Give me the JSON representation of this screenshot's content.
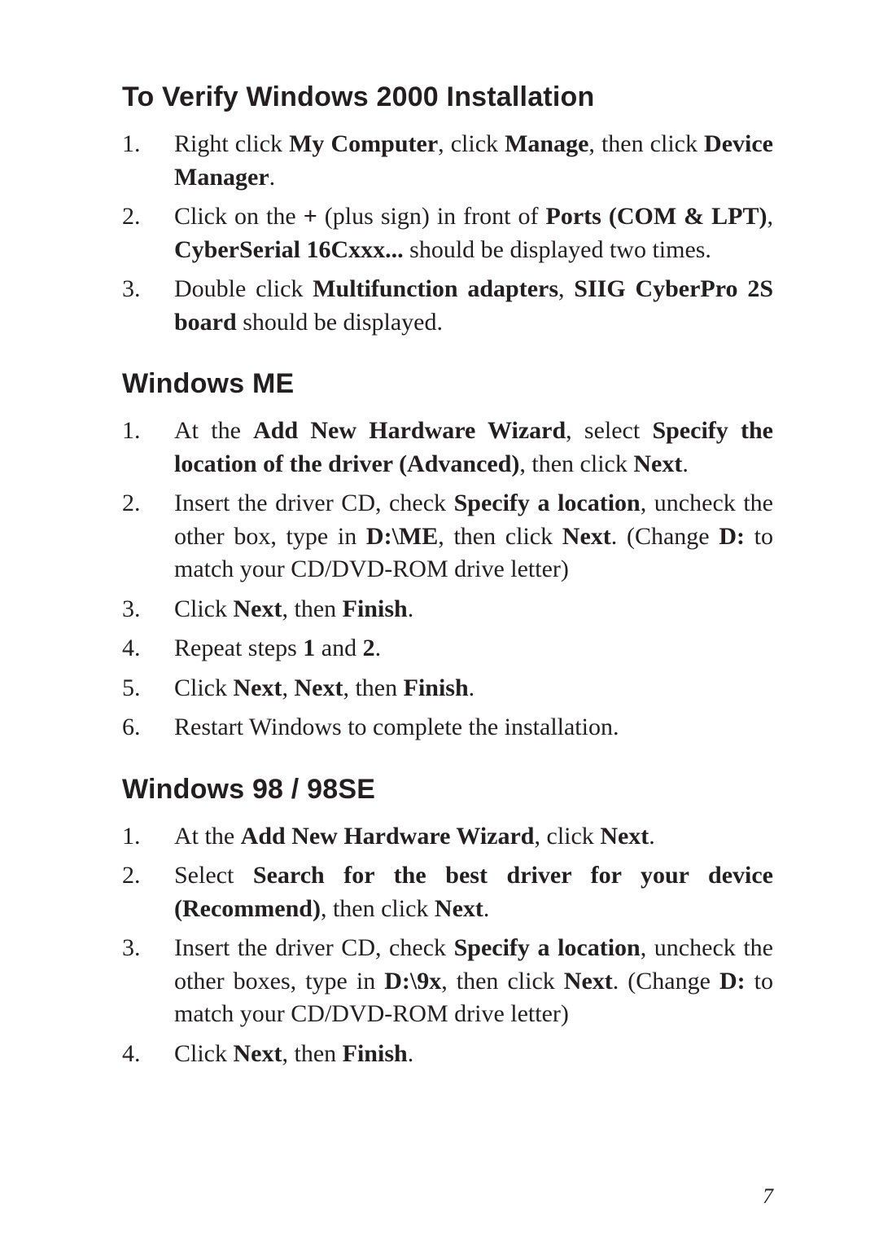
{
  "sections": [
    {
      "title": "To Verify Windows 2000 Installation",
      "items": [
        [
          {
            "t": "Right click "
          },
          {
            "t": "My Computer",
            "b": true
          },
          {
            "t": ", click "
          },
          {
            "t": "Manage",
            "b": true
          },
          {
            "t": ", then click "
          },
          {
            "t": "Device Manager",
            "b": true
          },
          {
            "t": "."
          }
        ],
        [
          {
            "t": "Click on the "
          },
          {
            "t": "+",
            "b": true
          },
          {
            "t": " (plus sign) in front of "
          },
          {
            "t": "Ports (COM & LPT)",
            "b": true
          },
          {
            "t": ", "
          },
          {
            "t": "CyberSerial 16Cxxx...",
            "b": true
          },
          {
            "t": " should be displayed two times."
          }
        ],
        [
          {
            "t": "Double click "
          },
          {
            "t": "Multifunction adapters",
            "b": true
          },
          {
            "t": ", "
          },
          {
            "t": "SIIG CyberPro 2S board",
            "b": true
          },
          {
            "t": " should be displayed."
          }
        ]
      ]
    },
    {
      "title": "Windows ME",
      "items": [
        [
          {
            "t": "At the "
          },
          {
            "t": "Add New Hardware Wizard",
            "b": true
          },
          {
            "t": ", select "
          },
          {
            "t": "Specify the location of the driver (Advanced)",
            "b": true
          },
          {
            "t": ", then click "
          },
          {
            "t": "Next",
            "b": true
          },
          {
            "t": "."
          }
        ],
        [
          {
            "t": "Insert the driver CD, check "
          },
          {
            "t": "Specify a location",
            "b": true
          },
          {
            "t": ", uncheck the other box, type in "
          },
          {
            "t": "D:\\ME",
            "b": true
          },
          {
            "t": ", then click "
          },
          {
            "t": "Next",
            "b": true
          },
          {
            "t": ". (Change "
          },
          {
            "t": "D:",
            "b": true
          },
          {
            "t": " to match your CD/DVD-ROM drive letter)"
          }
        ],
        [
          {
            "t": "Click "
          },
          {
            "t": "Next",
            "b": true
          },
          {
            "t": ", then "
          },
          {
            "t": "Finish",
            "b": true
          },
          {
            "t": "."
          }
        ],
        [
          {
            "t": "Repeat steps "
          },
          {
            "t": "1",
            "b": true
          },
          {
            "t": " and "
          },
          {
            "t": "2",
            "b": true
          },
          {
            "t": "."
          }
        ],
        [
          {
            "t": "Click "
          },
          {
            "t": "Next",
            "b": true
          },
          {
            "t": ", "
          },
          {
            "t": "Next",
            "b": true
          },
          {
            "t": ", then "
          },
          {
            "t": "Finish",
            "b": true
          },
          {
            "t": "."
          }
        ],
        [
          {
            "t": "Restart Windows to complete the installation."
          }
        ]
      ]
    },
    {
      "title": "Windows 98 / 98SE",
      "items": [
        [
          {
            "t": "At the "
          },
          {
            "t": "Add New Hardware Wizard",
            "b": true
          },
          {
            "t": ", click "
          },
          {
            "t": "Next",
            "b": true
          },
          {
            "t": "."
          }
        ],
        [
          {
            "t": "Select "
          },
          {
            "t": "Search for the best driver for your device (Recommend)",
            "b": true
          },
          {
            "t": ", then click "
          },
          {
            "t": "Next",
            "b": true
          },
          {
            "t": "."
          }
        ],
        [
          {
            "t": "Insert the driver CD, check "
          },
          {
            "t": "Specify a location",
            "b": true
          },
          {
            "t": ", uncheck the other boxes,  type in "
          },
          {
            "t": "D:\\9x",
            "b": true
          },
          {
            "t": ", then click "
          },
          {
            "t": "Next",
            "b": true
          },
          {
            "t": ". (Change "
          },
          {
            "t": "D:",
            "b": true
          },
          {
            "t": " to match your CD/DVD-ROM drive letter)"
          }
        ],
        [
          {
            "t": "Click "
          },
          {
            "t": "Next",
            "b": true
          },
          {
            "t": ", then "
          },
          {
            "t": "Finish",
            "b": true
          },
          {
            "t": "."
          }
        ]
      ]
    }
  ],
  "page_number": "7",
  "colors": {
    "text": "#231f20",
    "background": "#ffffff"
  },
  "typography": {
    "heading_family": "Helvetica, Arial, sans-serif",
    "heading_size_pt": 18,
    "body_family": "Palatino, Georgia, serif",
    "body_size_pt": 15
  }
}
